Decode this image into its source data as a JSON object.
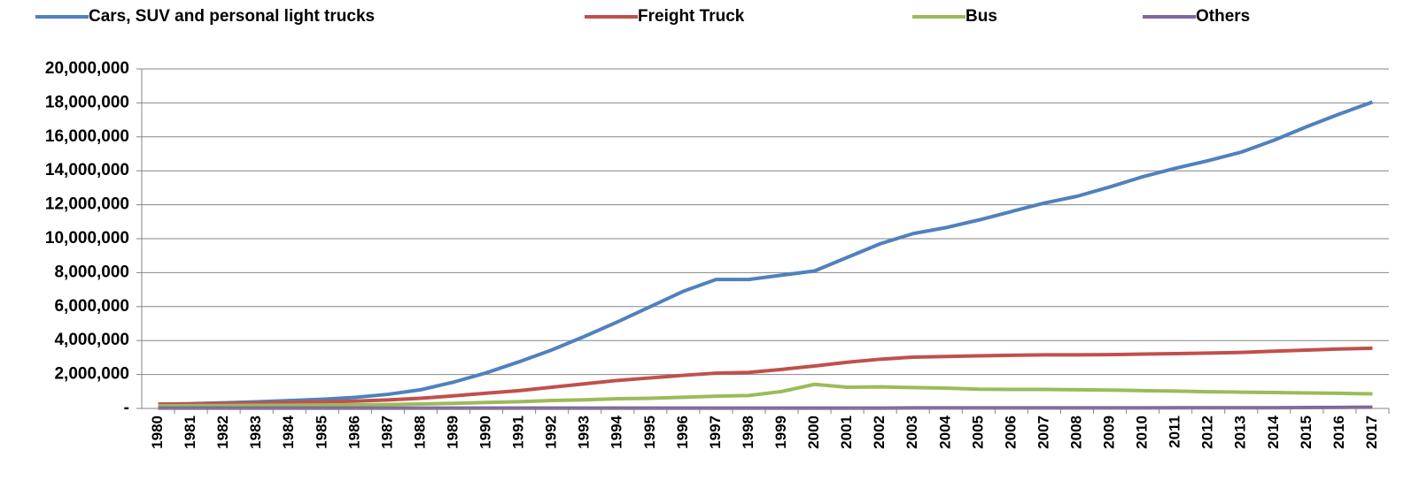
{
  "chart_data": {
    "type": "line",
    "categories": [
      "1980",
      "1981",
      "1982",
      "1983",
      "1984",
      "1985",
      "1986",
      "1987",
      "1988",
      "1989",
      "1990",
      "1991",
      "1992",
      "1993",
      "1994",
      "1995",
      "1996",
      "1997",
      "1998",
      "1999",
      "2000",
      "2001",
      "2002",
      "2003",
      "2004",
      "2005",
      "2006",
      "2007",
      "2008",
      "2009",
      "2010",
      "2011",
      "2012",
      "2013",
      "2014",
      "2015",
      "2016",
      "2017"
    ],
    "series": [
      {
        "name": "Cars, SUV and personal light trucks",
        "color": "#4f81bd",
        "values": [
          250000,
          280000,
          330000,
          390000,
          460000,
          540000,
          650000,
          830000,
          1100000,
          1550000,
          2100000,
          2750000,
          3450000,
          4250000,
          5100000,
          6000000,
          6900000,
          7600000,
          7600000,
          7850000,
          8100000,
          8900000,
          9700000,
          10300000,
          10650000,
          11100000,
          11600000,
          12100000,
          12500000,
          13050000,
          13650000,
          14150000,
          14600000,
          15100000,
          15800000,
          16600000,
          17350000,
          18050000
        ]
      },
      {
        "name": "Freight Truck",
        "color": "#c0504d",
        "values": [
          250000,
          260000,
          290000,
          320000,
          350000,
          390000,
          430000,
          500000,
          600000,
          740000,
          900000,
          1050000,
          1250000,
          1450000,
          1650000,
          1800000,
          1950000,
          2080000,
          2120000,
          2300000,
          2500000,
          2720000,
          2900000,
          3020000,
          3060000,
          3100000,
          3130000,
          3160000,
          3160000,
          3170000,
          3200000,
          3230000,
          3260000,
          3300000,
          3370000,
          3440000,
          3500000,
          3550000
        ]
      },
      {
        "name": "Bus",
        "color": "#9bbb59",
        "values": [
          150000,
          160000,
          170000,
          180000,
          190000,
          200000,
          210000,
          230000,
          260000,
          300000,
          350000,
          400000,
          470000,
          510000,
          570000,
          600000,
          660000,
          720000,
          760000,
          1000000,
          1420000,
          1250000,
          1270000,
          1230000,
          1200000,
          1130000,
          1120000,
          1120000,
          1100000,
          1080000,
          1050000,
          1020000,
          980000,
          960000,
          940000,
          910000,
          890000,
          860000
        ]
      },
      {
        "name": "Others",
        "color": "#8064a2",
        "values": [
          20000,
          20000,
          20000,
          20000,
          20000,
          20000,
          20000,
          20000,
          20000,
          20000,
          20000,
          20000,
          20000,
          20000,
          20000,
          20000,
          20000,
          20000,
          20000,
          20000,
          20000,
          20000,
          20000,
          30000,
          30000,
          30000,
          30000,
          30000,
          30000,
          30000,
          30000,
          40000,
          40000,
          40000,
          40000,
          50000,
          60000,
          70000
        ]
      }
    ],
    "ylim": [
      0,
      20000000
    ],
    "yticks": [
      {
        "value": 0,
        "label": "-"
      },
      {
        "value": 2000000,
        "label": "2,000,000"
      },
      {
        "value": 4000000,
        "label": "4,000,000"
      },
      {
        "value": 6000000,
        "label": "6,000,000"
      },
      {
        "value": 8000000,
        "label": "8,000,000"
      },
      {
        "value": 10000000,
        "label": "10,000,000"
      },
      {
        "value": 12000000,
        "label": "12,000,000"
      },
      {
        "value": 14000000,
        "label": "14,000,000"
      },
      {
        "value": 16000000,
        "label": "16,000,000"
      },
      {
        "value": 18000000,
        "label": "18,000,000"
      },
      {
        "value": 20000000,
        "label": "20,000,000"
      }
    ],
    "grid": true,
    "legend": "top"
  }
}
